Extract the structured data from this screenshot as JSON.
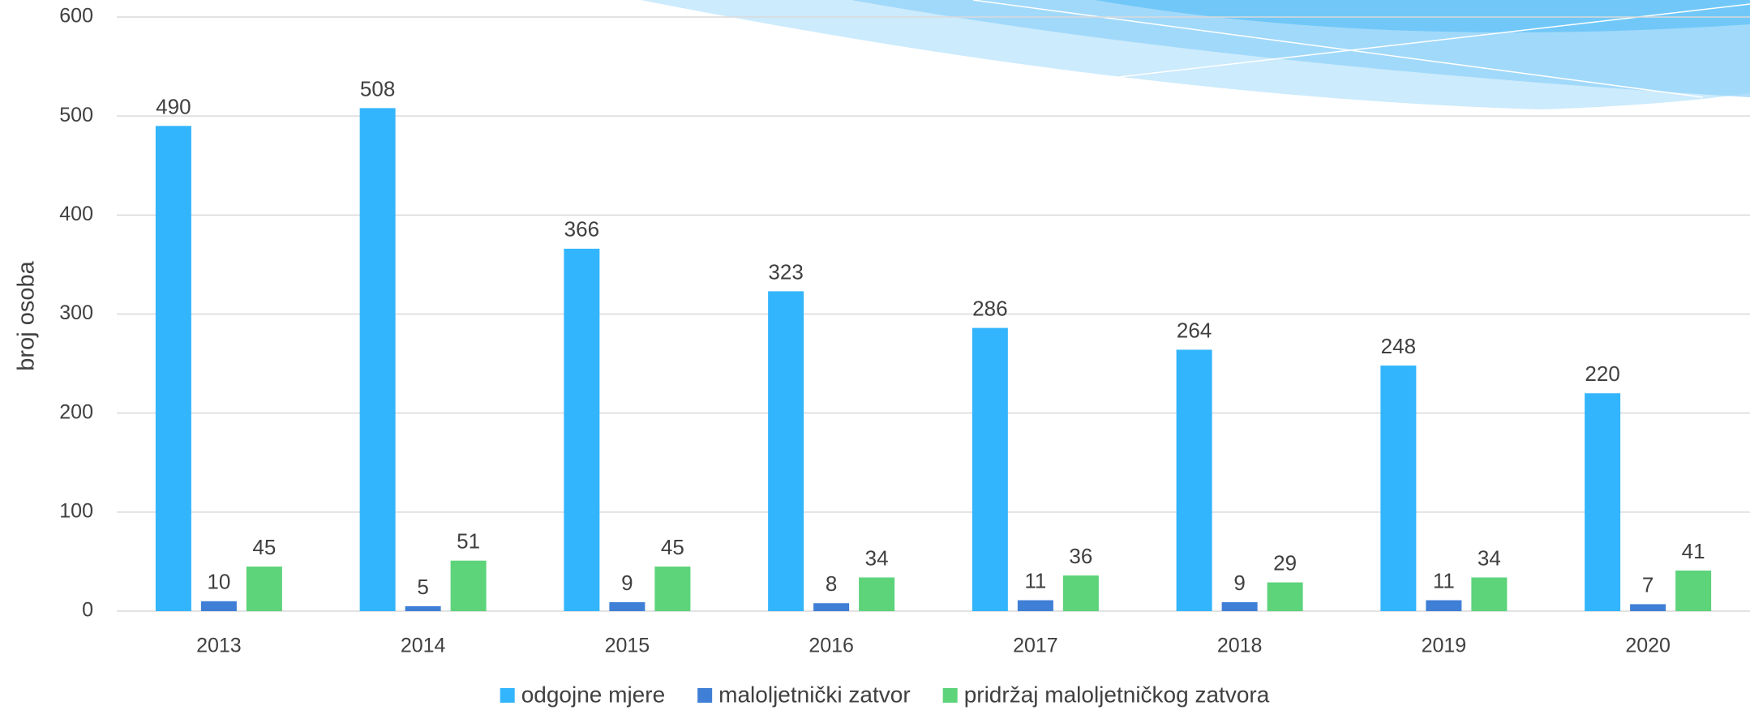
{
  "chart_data": {
    "type": "bar",
    "y_label": "broj osoba",
    "categories": [
      "2013",
      "2014",
      "2015",
      "2016",
      "2017",
      "2018",
      "2019",
      "2020"
    ],
    "series": [
      {
        "name": "odgojne mjere",
        "color": "#33b5fd",
        "values": [
          490,
          508,
          366,
          323,
          286,
          264,
          248,
          220
        ]
      },
      {
        "name": "maloljetnički zatvor",
        "color": "#3f7fd6",
        "values": [
          10,
          5,
          9,
          8,
          11,
          9,
          11,
          7
        ]
      },
      {
        "name": "pridržaj maloljetničkog zatvora",
        "color": "#5dd37a",
        "values": [
          45,
          51,
          45,
          34,
          36,
          29,
          34,
          41
        ]
      }
    ],
    "ylim": [
      0,
      600
    ],
    "yticks": [
      0,
      100,
      200,
      300,
      400,
      500,
      600
    ],
    "grid": true,
    "legend": "bottom"
  }
}
